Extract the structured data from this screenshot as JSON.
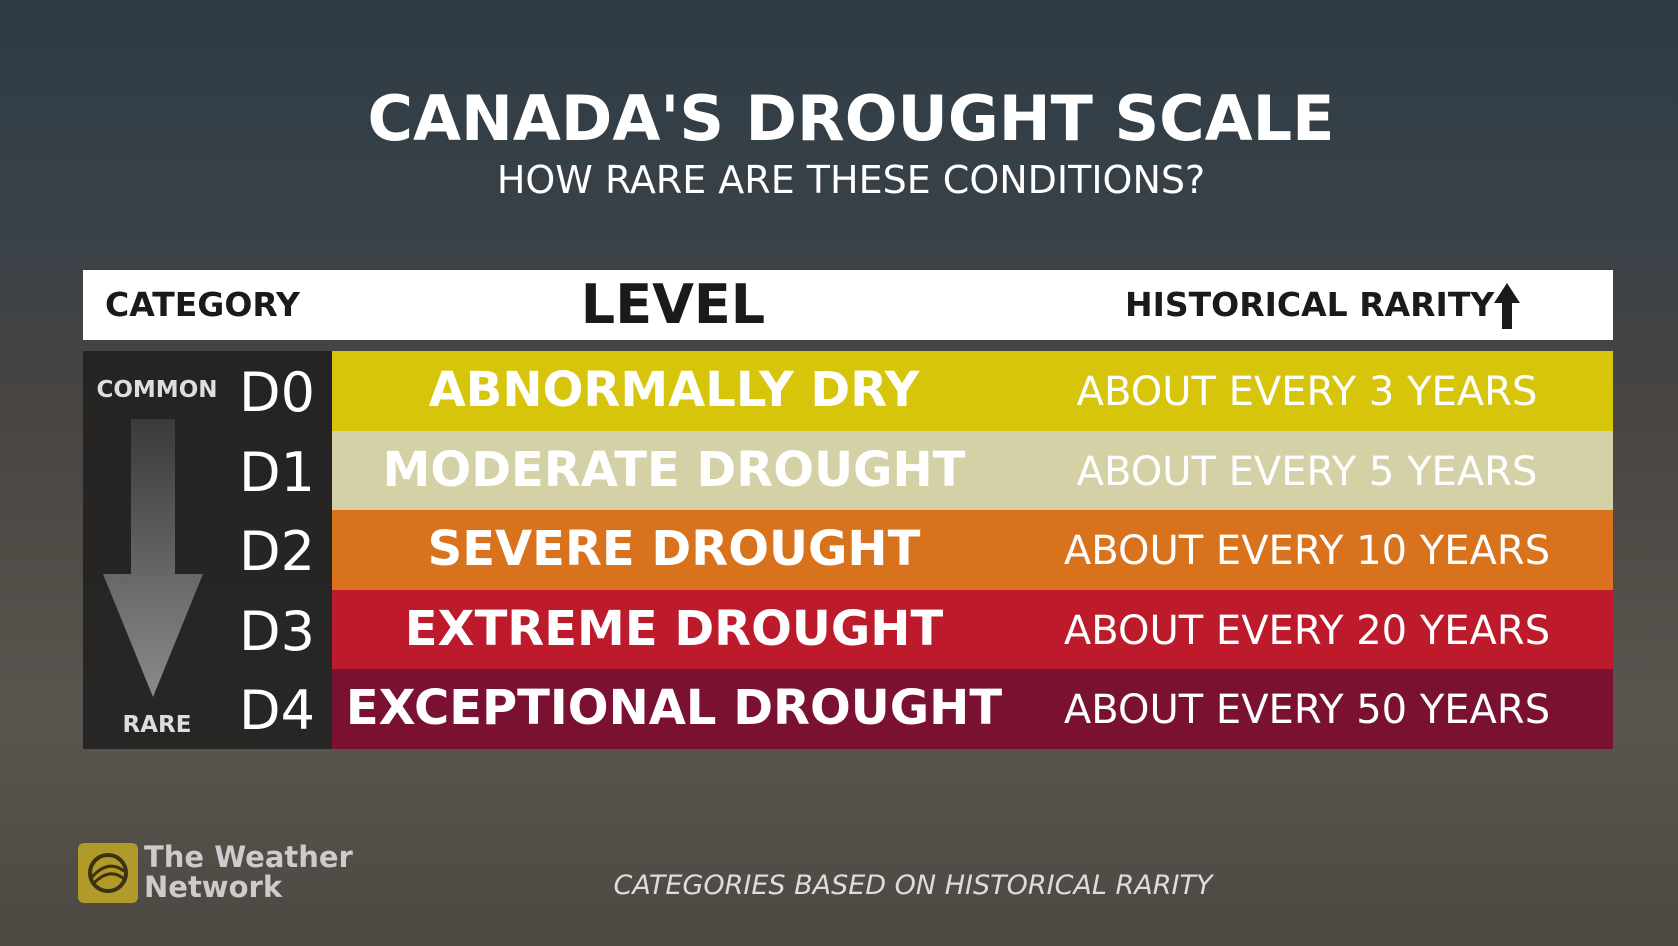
{
  "header": {
    "title": "CANADA'S DROUGHT SCALE",
    "subtitle": "HOW RARE ARE THESE CONDITIONS?"
  },
  "table": {
    "columns": [
      "CATEGORY",
      "LEVEL",
      "HISTORICAL RARITY"
    ],
    "rows": [
      [
        "D0",
        "ABNORMALLY DRY",
        "ABOUT EVERY 3 YEARS"
      ],
      [
        "D1",
        "MODERATE DROUGHT",
        "ABOUT EVERY 5 YEARS"
      ],
      [
        "D2",
        "SEVERE DROUGHT",
        "ABOUT EVERY 10 YEARS"
      ],
      [
        "D3",
        "EXTREME DROUGHT",
        "ABOUT EVERY 20 YEARS"
      ],
      [
        "D4",
        "EXCEPTIONAL DROUGHT",
        "ABOUT EVERY 50 YEARS"
      ]
    ]
  },
  "scale": {
    "top": "COMMON",
    "bottom": "RARE"
  },
  "logo": {
    "lines": [
      "The Weather",
      "Network"
    ]
  },
  "footer": "CATEGORIES BASED ON HISTORICAL RARITY"
}
